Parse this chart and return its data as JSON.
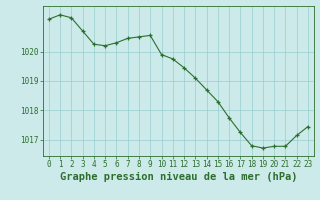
{
  "x": [
    0,
    1,
    2,
    3,
    4,
    5,
    6,
    7,
    8,
    9,
    10,
    11,
    12,
    13,
    14,
    15,
    16,
    17,
    18,
    19,
    20,
    21,
    22,
    23
  ],
  "y": [
    1021.1,
    1021.25,
    1021.15,
    1020.7,
    1020.25,
    1020.2,
    1020.3,
    1020.45,
    1020.5,
    1020.55,
    1019.9,
    1019.75,
    1019.45,
    1019.1,
    1018.7,
    1018.3,
    1017.75,
    1017.25,
    1016.8,
    1016.72,
    1016.78,
    1016.78,
    1017.15,
    1017.45
  ],
  "line_color": "#2d6e2d",
  "marker": "+",
  "marker_color": "#2d6e2d",
  "bg_color": "#cceaea",
  "grid_color": "#99cccc",
  "axis_color": "#2d6e2d",
  "xlabel": "Graphe pression niveau de la mer (hPa)",
  "xlabel_fontsize": 7.5,
  "xlabel_color": "#2d6e2d",
  "ylim": [
    1016.45,
    1021.55
  ],
  "xlim": [
    -0.5,
    23.5
  ],
  "ytick_vals": [
    1017,
    1018,
    1019,
    1020
  ],
  "tick_fontsize": 5.5
}
